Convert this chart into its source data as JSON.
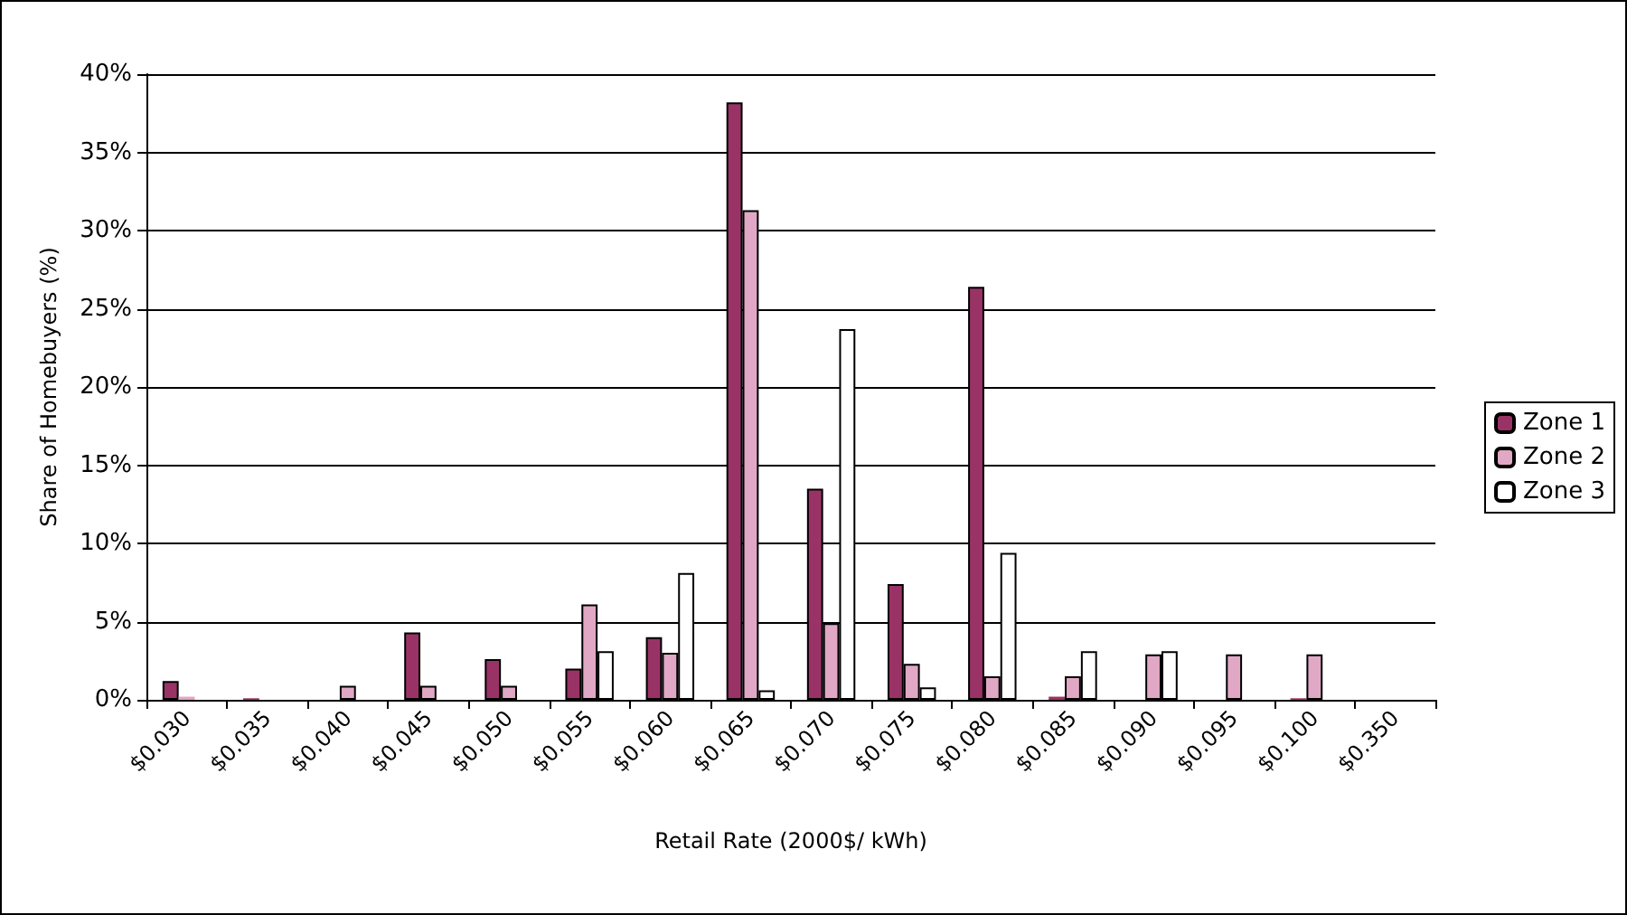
{
  "chart_data": {
    "type": "bar",
    "xlabel": "Retail Rate (2000$/ kWh)",
    "ylabel": "Share of Homebuyers (%)",
    "categories": [
      "$0.030",
      "$0.035",
      "$0.040",
      "$0.045",
      "$0.050",
      "$0.055",
      "$0.060",
      "$0.065",
      "$0.070",
      "$0.075",
      "$0.080",
      "$0.085",
      "$0.090",
      "$0.095",
      "$0.100",
      "$0.350"
    ],
    "series": [
      {
        "name": "Zone 1",
        "color": "#993366",
        "values": [
          1.2,
          0.1,
          0,
          4.3,
          2.6,
          2.0,
          4.0,
          38.2,
          13.5,
          7.4,
          26.4,
          0.2,
          0,
          0,
          0.1,
          0
        ]
      },
      {
        "name": "Zone 2",
        "color": "#e0a8c4",
        "values": [
          0.2,
          null,
          0.9,
          0.9,
          0.9,
          6.1,
          3.0,
          31.3,
          4.9,
          2.3,
          1.5,
          1.5,
          2.9,
          2.9,
          2.9,
          0
        ]
      },
      {
        "name": "Zone 3",
        "color": "#ffffff",
        "values": [
          0,
          0,
          0,
          0,
          0,
          3.1,
          8.1,
          0.6,
          23.7,
          0.8,
          9.4,
          3.1,
          3.1,
          0,
          0,
          0
        ]
      }
    ],
    "ylim": [
      0,
      40
    ],
    "yticks": [
      {
        "value": 0,
        "label": "0%"
      },
      {
        "value": 5,
        "label": "5%"
      },
      {
        "value": 10,
        "label": "10%"
      },
      {
        "value": 15,
        "label": "15%"
      },
      {
        "value": 20,
        "label": "20%"
      },
      {
        "value": 25,
        "label": "25%"
      },
      {
        "value": 30,
        "label": "30%"
      },
      {
        "value": 35,
        "label": "35%"
      },
      {
        "value": 40,
        "label": "40%"
      }
    ],
    "grid": "y",
    "legend": "right"
  }
}
